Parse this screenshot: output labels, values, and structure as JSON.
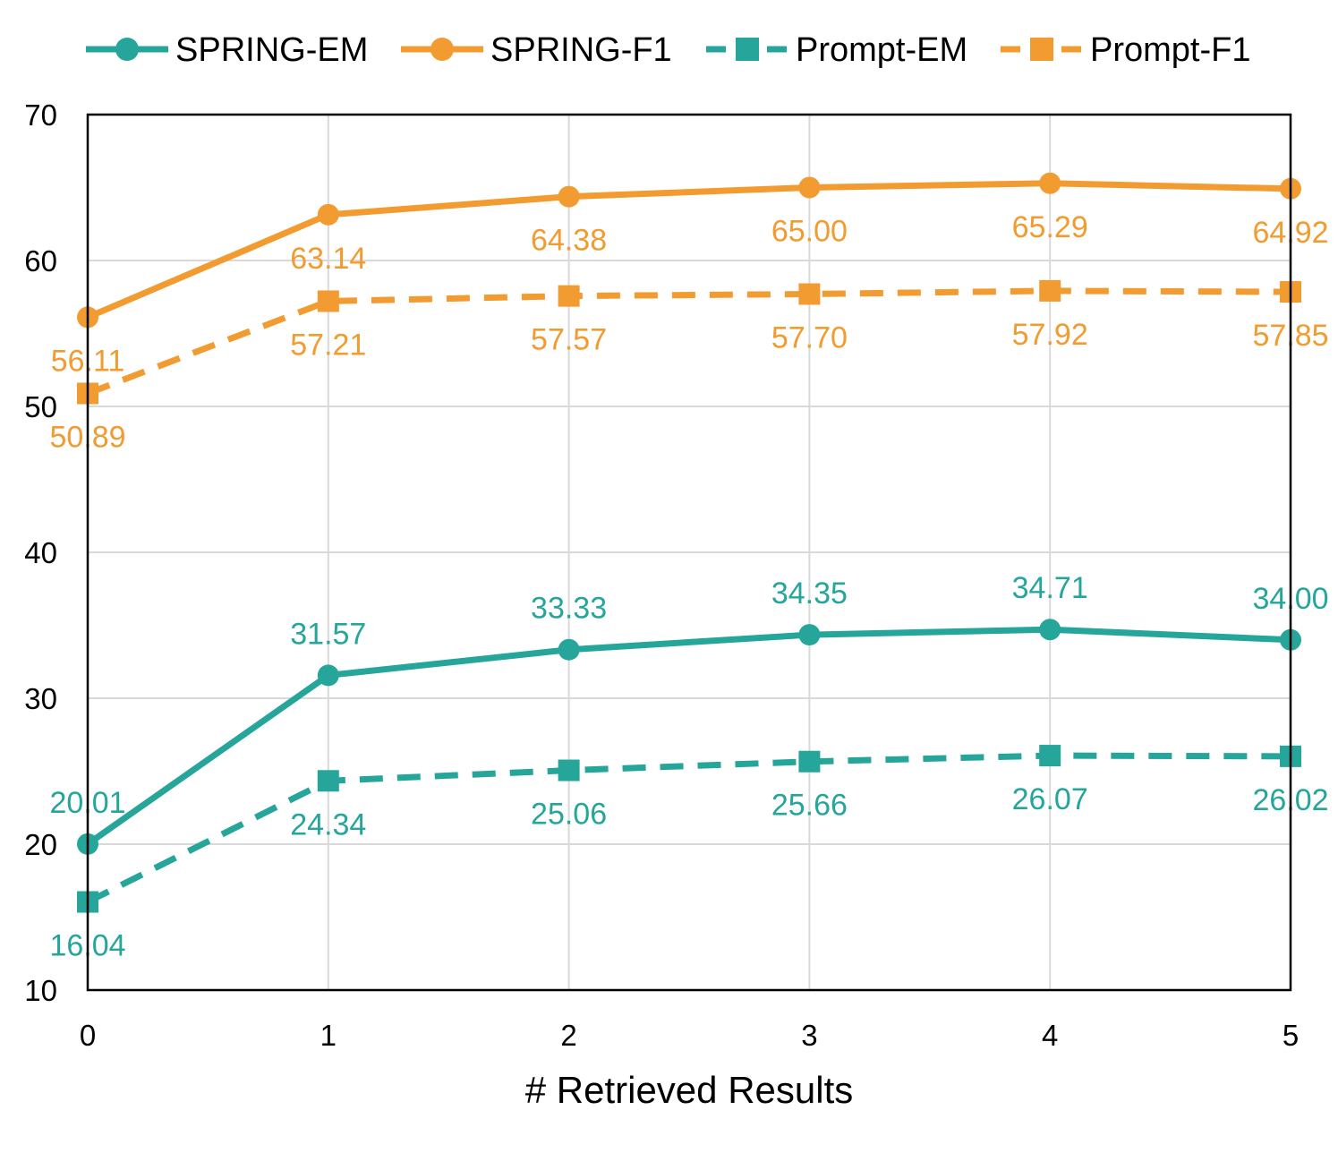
{
  "chart_data": {
    "type": "line",
    "title": "",
    "xlabel": "# Retrieved Results",
    "ylabel": "",
    "x": [
      0,
      1,
      2,
      3,
      4,
      5
    ],
    "x_tick_labels": [
      "0",
      "1",
      "2",
      "3",
      "4",
      "5"
    ],
    "xlim": [
      0,
      5
    ],
    "ylim": [
      10,
      70
    ],
    "y_ticks": [
      10,
      20,
      30,
      40,
      50,
      60,
      70
    ],
    "y_tick_labels": [
      "10",
      "20",
      "30",
      "40",
      "50",
      "60",
      "70"
    ],
    "grid": true,
    "legend_position": "top",
    "series": [
      {
        "name": "SPRING-EM",
        "values": [
          20.01,
          31.57,
          33.33,
          34.35,
          34.71,
          34.0
        ],
        "labels": [
          "20.01",
          "31.57",
          "33.33",
          "34.35",
          "34.71",
          "34.00"
        ],
        "color": "#26a69a",
        "marker": "circle",
        "line_style": "solid",
        "label_position": "above"
      },
      {
        "name": "SPRING-F1",
        "values": [
          56.11,
          63.14,
          64.38,
          65.0,
          65.29,
          64.92
        ],
        "labels": [
          "56.11",
          "63.14",
          "64.38",
          "65.00",
          "65.29",
          "64.92"
        ],
        "color": "#f29b30",
        "marker": "circle",
        "line_style": "solid",
        "label_position": "below"
      },
      {
        "name": "Prompt-EM",
        "values": [
          16.04,
          24.34,
          25.06,
          25.66,
          26.07,
          26.02
        ],
        "labels": [
          "16.04",
          "24.34",
          "25.06",
          "25.66",
          "26.07",
          "26.02"
        ],
        "color": "#26a69a",
        "marker": "square",
        "line_style": "dashed",
        "label_position": "below"
      },
      {
        "name": "Prompt-F1",
        "values": [
          50.89,
          57.21,
          57.57,
          57.7,
          57.92,
          57.85
        ],
        "labels": [
          "50.89",
          "57.21",
          "57.57",
          "57.70",
          "57.92",
          "57.85"
        ],
        "color": "#f29b30",
        "marker": "square",
        "line_style": "dashed",
        "label_position": "below"
      }
    ]
  }
}
